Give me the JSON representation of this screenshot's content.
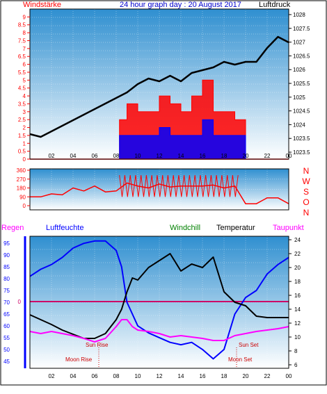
{
  "header": {
    "left_label": "Windstärke",
    "title": "24 hour graph day : 20 August 2017",
    "right_label": "Luftdruck"
  },
  "direction_labels": [
    "N",
    "W",
    "S",
    "O",
    "N"
  ],
  "legend": {
    "regen": "Regen",
    "luftfeuchte": "Luftfeuchte",
    "windchill": "Windchill",
    "temperatur": "Temperatur",
    "taupunkt": "Taupunkt"
  },
  "annotations": {
    "sun_rise": "Sun Rise",
    "sun_set": "Sun Set",
    "moon_rise": "Moon Rise",
    "moon_set": "Moon Set",
    "zero_label": "0"
  },
  "colors": {
    "wind": "#ff0000",
    "gust": "#0000ff",
    "pressure": "#000000",
    "humidity": "#0000ff",
    "temperature": "#000000",
    "dewpoint": "#ff00ff",
    "rain_zero": "#cc0066",
    "axis_blue": "#0000ff",
    "axis_red": "#ff0000"
  },
  "chart_data": [
    {
      "type": "line",
      "x_ticks": [
        "02",
        "04",
        "06",
        "08",
        "10",
        "12",
        "14",
        "16",
        "18",
        "20",
        "22",
        "00"
      ],
      "left_ticks": [
        "0",
        "0.5",
        "1",
        "1.5",
        "2",
        "2.5",
        "3",
        "3.5",
        "4",
        "4.5",
        "5",
        "5.5",
        "6",
        "6.5",
        "7",
        "7.5",
        "8",
        "8.5",
        "9"
      ],
      "right_ticks": [
        "1023.5",
        "1023.5",
        "1024",
        "1024.5",
        "1025",
        "1025.5",
        "1026",
        "1026.5",
        "1027",
        "1027.5",
        "1028"
      ],
      "ylim_wind": [
        0,
        9.5
      ],
      "ylim_pressure": [
        1022.8,
        1028.2
      ],
      "series": [
        {
          "key": "wind_avg",
          "x": [
            0,
            8,
            8.3,
            9,
            10,
            11,
            12,
            13,
            14,
            15,
            16,
            17,
            18,
            19,
            20,
            21,
            22,
            23,
            24
          ],
          "values": [
            0,
            0,
            2.5,
            3.5,
            3,
            3,
            4,
            3.5,
            3,
            4,
            5,
            3,
            3,
            2.5,
            0,
            0,
            0,
            0,
            2.5
          ]
        },
        {
          "key": "gust",
          "x": [
            0,
            8,
            8.3,
            9,
            10,
            11,
            12,
            13,
            14,
            15,
            16,
            17,
            18,
            19,
            20,
            21,
            22,
            23,
            24
          ],
          "values": [
            0,
            0,
            1.5,
            1.5,
            1.5,
            1.5,
            2,
            1.5,
            1.5,
            1.5,
            2.5,
            1.5,
            1.5,
            1.5,
            0,
            0,
            0,
            0,
            0
          ]
        },
        {
          "key": "pressure",
          "x": [
            0,
            1,
            2,
            3,
            4,
            5,
            6,
            7,
            8,
            9,
            10,
            11,
            12,
            13,
            14,
            15,
            16,
            17,
            18,
            19,
            20,
            21,
            22,
            23,
            24
          ],
          "values": [
            1023.7,
            1023.6,
            1023.8,
            1024.0,
            1024.2,
            1024.4,
            1024.6,
            1024.8,
            1025.0,
            1025.2,
            1025.5,
            1025.7,
            1025.6,
            1025.8,
            1025.6,
            1025.9,
            1026.0,
            1026.1,
            1026.3,
            1026.2,
            1026.3,
            1026.3,
            1026.8,
            1027.2,
            1027.0
          ]
        }
      ]
    },
    {
      "type": "line",
      "left_ticks": [
        "0",
        "90",
        "180",
        "270",
        "360"
      ],
      "ylim": [
        0,
        360
      ],
      "series": [
        {
          "key": "direction",
          "x": [
            0,
            1,
            2,
            3,
            4,
            5,
            6,
            7,
            8,
            9,
            10,
            11,
            12,
            13,
            14,
            15,
            16,
            17,
            18,
            19,
            20,
            21,
            22,
            23,
            24
          ],
          "values": [
            90,
            90,
            120,
            110,
            180,
            150,
            200,
            140,
            150,
            230,
            200,
            180,
            220,
            190,
            200,
            200,
            200,
            210,
            180,
            200,
            20,
            20,
            80,
            80,
            20
          ]
        }
      ]
    },
    {
      "type": "line",
      "left_ticks": [
        "45",
        "50",
        "55",
        "60",
        "65",
        "70",
        "75",
        "80",
        "85",
        "90",
        "95"
      ],
      "right_ticks": [
        "6",
        "8",
        "10",
        "12",
        "14",
        "16",
        "18",
        "20",
        "22",
        "24"
      ],
      "ylim_humidity": [
        42,
        98
      ],
      "ylim_temperature": [
        5.5,
        24.5
      ],
      "series": [
        {
          "key": "humidity",
          "x": [
            0,
            1,
            2,
            3,
            4,
            5,
            6,
            7,
            8,
            8.5,
            9,
            9.5,
            10,
            11,
            12,
            13,
            14,
            15,
            16,
            17,
            18,
            19,
            20,
            21,
            22,
            23,
            24
          ],
          "values": [
            81,
            84,
            86,
            89,
            93,
            95,
            96,
            96,
            92,
            85,
            70,
            65,
            60,
            57,
            55,
            53,
            52,
            53,
            50,
            46,
            50,
            65,
            72,
            75,
            82,
            86,
            89
          ]
        },
        {
          "key": "temperature",
          "x": [
            0,
            1,
            2,
            3,
            4,
            5,
            6,
            7,
            8,
            8.5,
            9,
            9.5,
            10,
            11,
            12,
            13,
            14,
            15,
            16,
            17,
            18,
            19,
            20,
            21,
            22,
            23,
            24
          ],
          "values": [
            13.2,
            12.5,
            11.8,
            11.0,
            10.4,
            9.8,
            9.8,
            10.5,
            12.5,
            14.0,
            16.5,
            18.5,
            18.2,
            20.0,
            21.0,
            22.0,
            19.5,
            20.5,
            20.0,
            21.5,
            16.5,
            15.0,
            14.5,
            13.0,
            12.8,
            12.8,
            12.8
          ]
        },
        {
          "key": "dewpoint",
          "x": [
            0,
            1,
            2,
            3,
            4,
            5,
            6,
            7,
            8,
            8.5,
            9,
            9.5,
            10,
            11,
            12,
            13,
            14,
            15,
            16,
            17,
            18,
            19,
            20,
            21,
            22,
            23,
            24
          ],
          "values": [
            10.8,
            10.5,
            10.8,
            10.5,
            10.2,
            9.8,
            9.3,
            9.8,
            11.5,
            12.5,
            12.5,
            11.5,
            11.0,
            10.8,
            10.5,
            10.0,
            10.2,
            10.0,
            9.8,
            9.5,
            9.5,
            10.2,
            10.5,
            10.8,
            11.0,
            11.2,
            11.5
          ]
        }
      ]
    }
  ]
}
